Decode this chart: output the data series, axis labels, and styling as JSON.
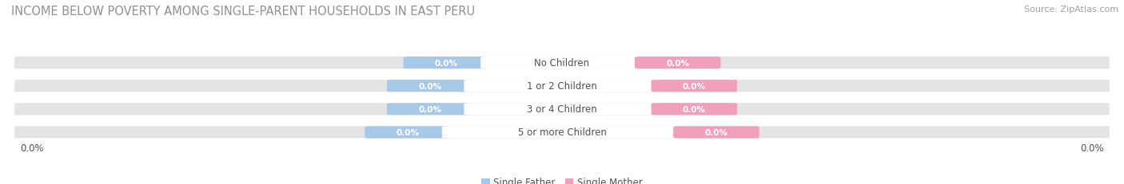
{
  "title": "INCOME BELOW POVERTY AMONG SINGLE-PARENT HOUSEHOLDS IN EAST PERU",
  "source": "Source: ZipAtlas.com",
  "categories": [
    "No Children",
    "1 or 2 Children",
    "3 or 4 Children",
    "5 or more Children"
  ],
  "single_father_values": [
    0.0,
    0.0,
    0.0,
    0.0
  ],
  "single_mother_values": [
    0.0,
    0.0,
    0.0,
    0.0
  ],
  "bar_bg_color": "#e4e4e4",
  "father_color": "#a8c8e8",
  "mother_color": "#f0a0b8",
  "father_label": "Single Father",
  "mother_label": "Single Mother",
  "title_color": "#909090",
  "source_color": "#a0a0a0",
  "label_color": "#505050",
  "background_color": "#ffffff",
  "x_left_label": "0.0%",
  "x_right_label": "0.0%",
  "title_fontsize": 10.5,
  "source_fontsize": 8,
  "tick_fontsize": 8.5,
  "cat_fontsize": 8.5,
  "val_fontsize": 7.5,
  "legend_fontsize": 8.5
}
